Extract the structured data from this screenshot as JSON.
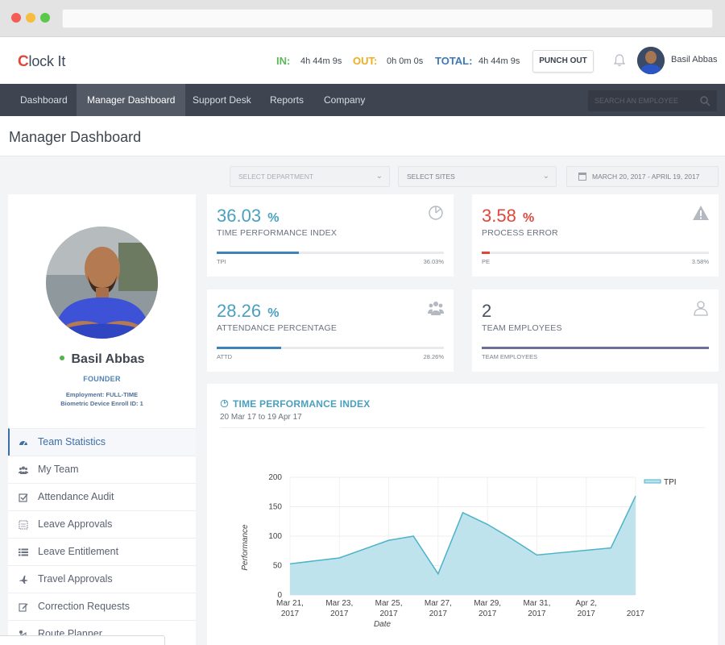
{
  "app": {
    "logo_c": "C",
    "logo_rest": "lock It"
  },
  "header": {
    "in_label": "IN:",
    "in_value": "4h 44m 9s",
    "out_label": "OUT:",
    "out_value": "0h 0m 0s",
    "total_label": "TOTAL:",
    "total_value": "4h 44m 9s",
    "punch_button": "PUNCH OUT",
    "user_name": "Basil Abbas",
    "colors": {
      "in": "#5cb85c",
      "out": "#f0ad1e",
      "total": "#3d7ab5"
    }
  },
  "nav": {
    "items": [
      {
        "label": "Dashboard"
      },
      {
        "label": "Manager Dashboard",
        "active": true
      },
      {
        "label": "Support Desk"
      },
      {
        "label": "Reports"
      },
      {
        "label": "Company"
      }
    ],
    "search_placeholder": "SEARCH AN EMPLOYEE"
  },
  "page": {
    "title": "Manager Dashboard"
  },
  "filters": {
    "department": "SELECT DEPARTMENT",
    "sites": "SELECT SITES",
    "date_range": "MARCH 20, 2017 - APRIL 19, 2017"
  },
  "profile": {
    "name": "Basil Abbas",
    "role": "FOUNDER",
    "employment": "Employment: FULL-TIME",
    "biometric": "Biometric Device Enroll ID: 1",
    "status_color": "#54b44b"
  },
  "menu": {
    "items": [
      {
        "label": "Team Statistics",
        "icon": "dashboard-gauge-icon",
        "active": true
      },
      {
        "label": "My Team",
        "icon": "users-icon"
      },
      {
        "label": "Attendance Audit",
        "icon": "checkbox-icon"
      },
      {
        "label": "Leave Approvals",
        "icon": "calendar-grid-icon"
      },
      {
        "label": "Leave Entitlement",
        "icon": "list-icon"
      },
      {
        "label": "Travel Approvals",
        "icon": "plane-icon"
      },
      {
        "label": "Correction Requests",
        "icon": "edit-icon"
      },
      {
        "label": "Route Planner",
        "icon": "route-icon"
      }
    ]
  },
  "stats": {
    "tpi": {
      "value": "36.03",
      "unit": "%",
      "label": "TIME PERFORMANCE INDEX",
      "foot_left": "TPI",
      "foot_right": "36.03%",
      "progress": 0.36,
      "color": "#4aa0bf",
      "bar_color": "#3d83b8",
      "icon": "pie-chart-icon"
    },
    "pe": {
      "value": "3.58",
      "unit": "%",
      "label": "PROCESS ERROR",
      "foot_left": "PE",
      "foot_right": "3.58%",
      "progress": 0.0358,
      "color": "#e0473b",
      "bar_color": "#e0473b",
      "icon": "warning-icon"
    },
    "attd": {
      "value": "28.26",
      "unit": "%",
      "label": "ATTENDANCE PERCENTAGE",
      "foot_left": "ATTD",
      "foot_right": "28.26%",
      "progress": 0.2826,
      "color": "#4aa0bf",
      "bar_color": "#3d83b8",
      "icon": "group-icon"
    },
    "team": {
      "value": "2",
      "label": "TEAM EMPLOYEES",
      "foot_left": "TEAM EMPLOYEES",
      "progress": 1.0,
      "color": "#4a5160",
      "bar_color": "#6b6f9a",
      "icon": "person-icon"
    }
  },
  "chart_panel": {
    "title": "TIME PERFORMANCE INDEX",
    "subtitle": "20 Mar 17 to 19 Apr 17"
  },
  "chart_data": {
    "type": "area",
    "xlabel": "Date",
    "ylabel": "Performance",
    "x_ticks": [
      [
        "Mar 21,",
        "2017"
      ],
      [
        "Mar 23,",
        "2017"
      ],
      [
        "Mar 25,",
        "2017"
      ],
      [
        "Mar 27,",
        "2017"
      ],
      [
        "Mar 29,",
        "2017"
      ],
      [
        "Mar 31,",
        "2017"
      ],
      [
        "Apr 2,",
        "2017"
      ],
      [
        "",
        "2017"
      ]
    ],
    "y_ticks": [
      0,
      50,
      100,
      150,
      200
    ],
    "ylim": [
      0,
      200
    ],
    "grid": true,
    "legend_position": "top-right",
    "series": [
      {
        "name": "TPI",
        "color": "#4bb3c9",
        "fill": "#bfe3ec",
        "x": [
          "Mar 21",
          "Mar 22",
          "Mar 23",
          "Mar 24",
          "Mar 25",
          "Mar 26",
          "Mar 27",
          "Mar 28",
          "Mar 29",
          "Mar 30",
          "Mar 31",
          "Apr 1",
          "Apr 2",
          "Apr 3",
          "Apr 4"
        ],
        "values": [
          53,
          58,
          63,
          78,
          93,
          100,
          36,
          140,
          120,
          95,
          68,
          72,
          76,
          80,
          168
        ]
      }
    ]
  }
}
